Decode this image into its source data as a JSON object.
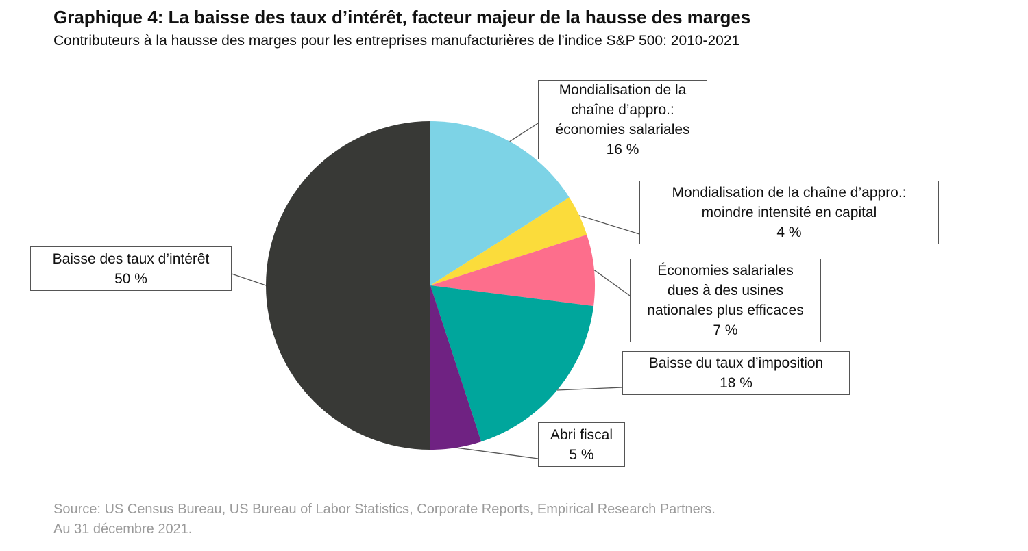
{
  "chart_data": {
    "type": "pie",
    "title": "Graphique 4: La baisse des taux d’intérêt, facteur majeur de la hausse des marges",
    "subtitle": "Contributeurs à la hausse des marges pour les entreprises manufacturières de l’indice S&P 500: 2010-2021",
    "categories": [
      "Mondialisation de la\nchaîne d’appro.:\néconomies salariales",
      "Mondialisation de la chaîne d’appro.:\nmoindre intensité en capital",
      "Économies salariales\ndues à des usines\nnationales plus efficaces",
      "Baisse du taux d’imposition",
      "Abri fiscal",
      "Baisse des taux d’intérêt"
    ],
    "values": [
      16,
      4,
      7,
      18,
      5,
      50
    ],
    "value_labels": [
      "16 %",
      "4 %",
      "7 %",
      "18 %",
      "5 %",
      "50 %"
    ],
    "colors": [
      "#7dd3e6",
      "#fbdc3b",
      "#fd6e8c",
      "#00a69c",
      "#6f2282",
      "#383936"
    ],
    "source": [
      "Source: US Census Bureau, US Bureau of Labor Statistics, Corporate Reports, Empirical Research Partners.",
      "Au 31 décembre 2021."
    ]
  }
}
